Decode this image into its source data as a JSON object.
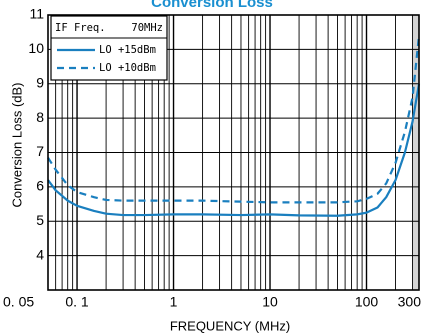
{
  "chart_data": {
    "type": "line",
    "title": "Conversion Loss",
    "xlabel": "FREQUENCY (MHz)",
    "ylabel": "Conversion Loss (dB)",
    "xscale": "log",
    "xlim": [
      0.05,
      350
    ],
    "ylim": [
      3,
      11
    ],
    "grid": true,
    "legend_position": "top-left",
    "legend_header": {
      "label": "IF Freq.",
      "value": "70MHz"
    },
    "x_ticks": [
      {
        "value": 0.05,
        "label": "0. 05"
      },
      {
        "value": 0.1,
        "label": "0. 1"
      },
      {
        "value": 1,
        "label": "1"
      },
      {
        "value": 10,
        "label": "10"
      },
      {
        "value": 100,
        "label": "100"
      },
      {
        "value": 300,
        "label": "300"
      }
    ],
    "y_ticks": [
      {
        "value": 4,
        "label": "4"
      },
      {
        "value": 5,
        "label": "5"
      },
      {
        "value": 6,
        "label": "6"
      },
      {
        "value": 7,
        "label": "7"
      },
      {
        "value": 8,
        "label": "8"
      },
      {
        "value": 9,
        "label": "9"
      },
      {
        "value": 10,
        "label": "10"
      },
      {
        "value": 11,
        "label": "11"
      }
    ],
    "shaded_region": {
      "x": [
        300,
        350
      ],
      "color": "#d4d4d4"
    },
    "series": [
      {
        "name": "LO +15dBm",
        "style": "solid",
        "color": "#1a7fbf",
        "points": [
          [
            0.05,
            6.2
          ],
          [
            0.06,
            5.9
          ],
          [
            0.08,
            5.6
          ],
          [
            0.1,
            5.45
          ],
          [
            0.15,
            5.3
          ],
          [
            0.2,
            5.22
          ],
          [
            0.3,
            5.18
          ],
          [
            0.5,
            5.18
          ],
          [
            1,
            5.2
          ],
          [
            2,
            5.2
          ],
          [
            5,
            5.18
          ],
          [
            10,
            5.2
          ],
          [
            20,
            5.17
          ],
          [
            50,
            5.16
          ],
          [
            80,
            5.2
          ],
          [
            100,
            5.25
          ],
          [
            130,
            5.4
          ],
          [
            160,
            5.7
          ],
          [
            200,
            6.2
          ],
          [
            250,
            7.0
          ],
          [
            300,
            7.9
          ],
          [
            350,
            9.0
          ]
        ]
      },
      {
        "name": "LO +10dBm",
        "style": "dashed",
        "color": "#1a7fbf",
        "points": [
          [
            0.05,
            6.85
          ],
          [
            0.06,
            6.5
          ],
          [
            0.08,
            6.05
          ],
          [
            0.1,
            5.85
          ],
          [
            0.15,
            5.7
          ],
          [
            0.2,
            5.62
          ],
          [
            0.3,
            5.6
          ],
          [
            0.5,
            5.6
          ],
          [
            1,
            5.6
          ],
          [
            2,
            5.6
          ],
          [
            5,
            5.57
          ],
          [
            10,
            5.55
          ],
          [
            20,
            5.55
          ],
          [
            50,
            5.55
          ],
          [
            80,
            5.58
          ],
          [
            100,
            5.65
          ],
          [
            130,
            5.8
          ],
          [
            160,
            6.1
          ],
          [
            200,
            6.7
          ],
          [
            250,
            7.6
          ],
          [
            300,
            8.6
          ],
          [
            350,
            10.4
          ]
        ]
      }
    ]
  }
}
